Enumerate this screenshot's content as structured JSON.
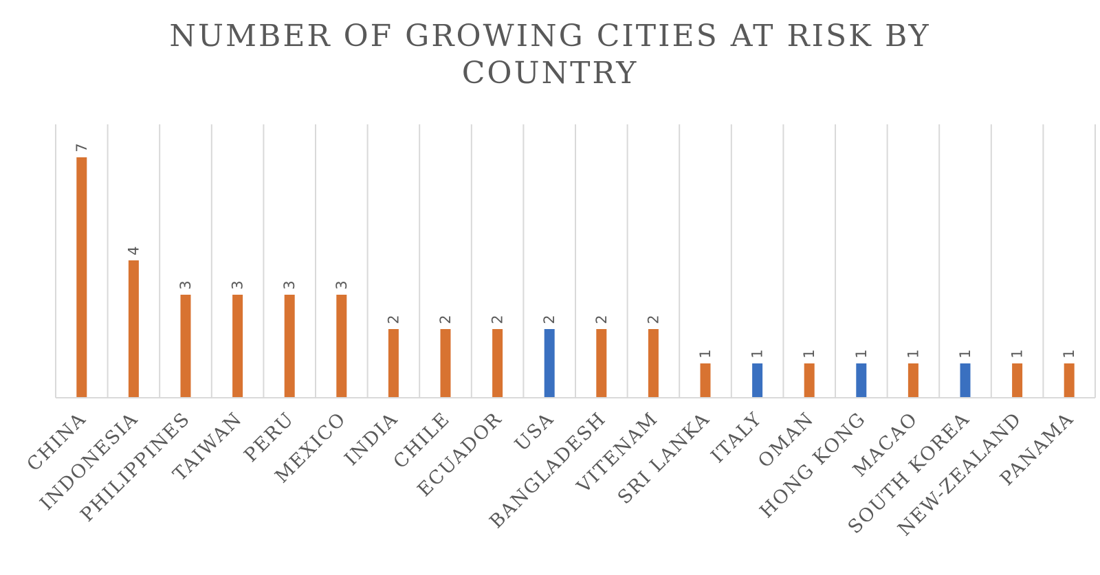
{
  "chart_data": {
    "type": "bar",
    "title": "NUMBER OF GROWING CITIES AT RISK BY COUNTRY",
    "xlabel": "",
    "ylabel": "",
    "categories": [
      "CHINA",
      "INDONESIA",
      "PHILIPPINES",
      "TAIWAN",
      "PERU",
      "MEXICO",
      "INDIA",
      "CHILE",
      "ECUADOR",
      "USA",
      "BANGLADESH",
      "VITENAM",
      "SRI LANKA",
      "ITALY",
      "OMAN",
      "HONG KONG",
      "MACAO",
      "SOUTH KOREA",
      "NEW-ZEALAND",
      "PANAMA"
    ],
    "values": [
      7,
      4,
      3,
      3,
      3,
      3,
      2,
      2,
      2,
      2,
      2,
      2,
      1,
      1,
      1,
      1,
      1,
      1,
      1,
      1
    ],
    "data_labels": [
      "7",
      "4",
      "3",
      "3",
      "3",
      "3",
      "2",
      "2",
      "2",
      "2",
      "2",
      "2",
      "1",
      "1",
      "1",
      "1",
      "1",
      "1",
      "1",
      "1"
    ],
    "bar_colors": [
      "#d87331",
      "#d87331",
      "#d87331",
      "#d87331",
      "#d87331",
      "#d87331",
      "#d87331",
      "#d87331",
      "#d87331",
      "#3a70c0",
      "#d87331",
      "#d87331",
      "#d87331",
      "#3a70c0",
      "#d87331",
      "#3a70c0",
      "#d87331",
      "#3a70c0",
      "#d87331",
      "#d87331"
    ],
    "ylim": [
      0,
      8
    ],
    "grid": "vertical",
    "legend": "none",
    "colors": {
      "orange": "#d87331",
      "blue": "#3a70c0",
      "grid": "#d9d9d9",
      "text": "#595959"
    }
  }
}
